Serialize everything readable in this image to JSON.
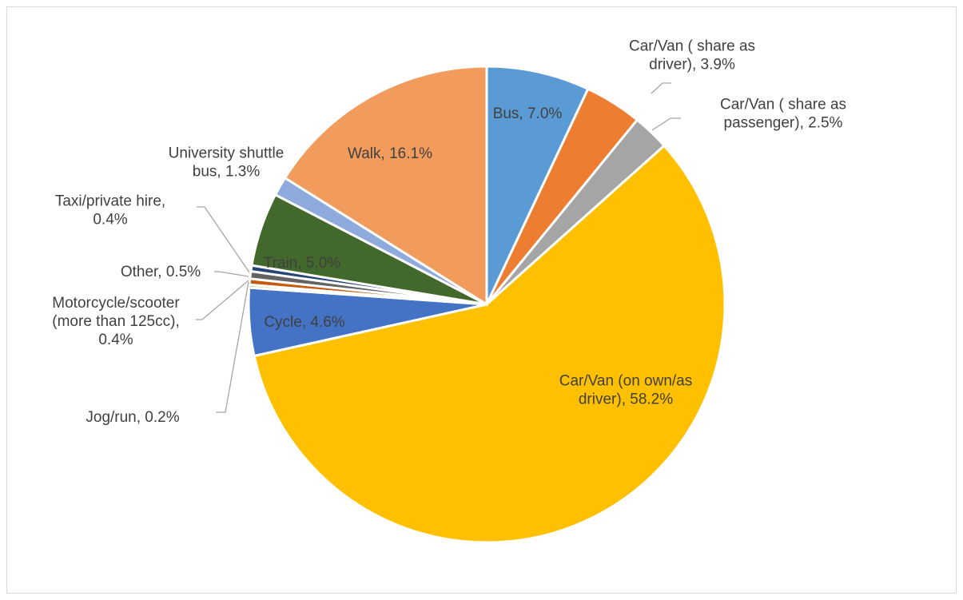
{
  "chart_data": {
    "type": "pie",
    "title": "",
    "slices": [
      {
        "label": "Bus, 7.0%",
        "lines": [
          "Bus, 7.0%"
        ],
        "value": 7.0,
        "color": "#5b9bd5"
      },
      {
        "label": "Car/Van ( share as driver), 3.9%",
        "lines": [
          "Car/Van ( share as",
          "driver), 3.9%"
        ],
        "value": 3.9,
        "color": "#ed7d31"
      },
      {
        "label": "Car/Van ( share as passenger), 2.5%",
        "lines": [
          "Car/Van ( share as",
          "passenger), 2.5%"
        ],
        "value": 2.5,
        "color": "#a5a5a5"
      },
      {
        "label": "Car/Van (on own/as driver), 58.2%",
        "lines": [
          "Car/Van (on own/as",
          "driver), 58.2%"
        ],
        "value": 58.2,
        "color": "#ffc000"
      },
      {
        "label": "Cycle, 4.6%",
        "lines": [
          "Cycle, 4.6%"
        ],
        "value": 4.6,
        "color": "#4472c4"
      },
      {
        "label": "Jog/run, 0.2%",
        "lines": [
          "Jog/run, 0.2%"
        ],
        "value": 0.2,
        "color": "#a9d18e"
      },
      {
        "label": "Motorcycle/scooter (more than 125cc), 0.4%",
        "lines": [
          "Motorcycle/scooter",
          "(more than 125cc),",
          "0.4%"
        ],
        "value": 0.4,
        "color": "#c55a11"
      },
      {
        "label": "Other, 0.5%",
        "lines": [
          "Other, 0.5%"
        ],
        "value": 0.5,
        "color": "#636363"
      },
      {
        "label": "Taxi/private hire, 0.4%",
        "lines": [
          "Taxi/private hire,",
          "0.4%"
        ],
        "value": 0.4,
        "color": "#264478"
      },
      {
        "label": "Train, 5.0%",
        "lines": [
          "Train, 5.0%"
        ],
        "value": 5.0,
        "color": "#43682b"
      },
      {
        "label": "University shuttle bus, 1.3%",
        "lines": [
          "University shuttle",
          "bus, 1.3%"
        ],
        "value": 1.3,
        "color": "#8faadc"
      },
      {
        "label": "Walk, 16.1%",
        "lines": [
          "Walk, 16.1%"
        ],
        "value": 16.1,
        "color": "#f19c5c"
      }
    ]
  }
}
